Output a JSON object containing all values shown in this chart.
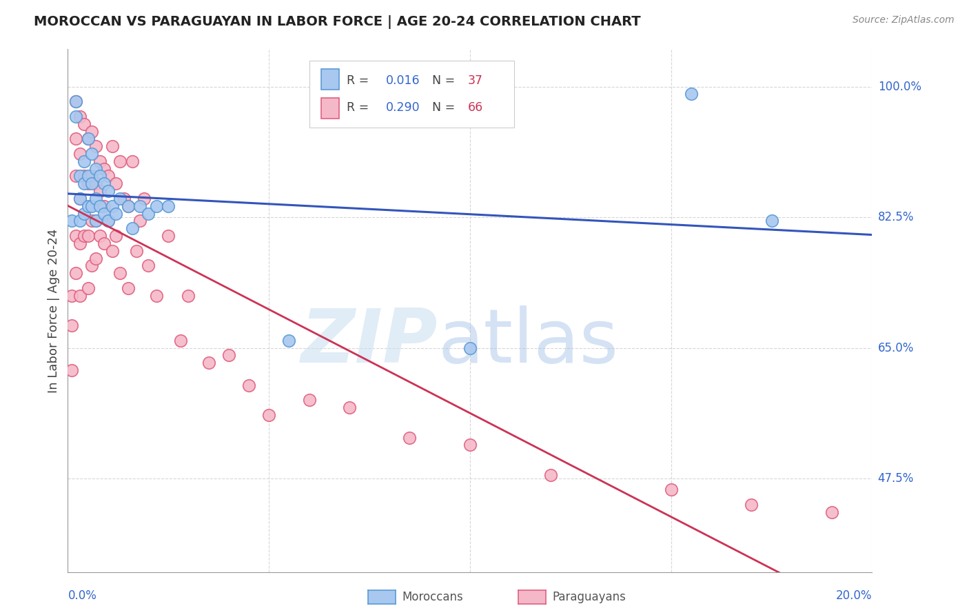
{
  "title": "MOROCCAN VS PARAGUAYAN IN LABOR FORCE | AGE 20-24 CORRELATION CHART",
  "source": "Source: ZipAtlas.com",
  "ylabel": "In Labor Force | Age 20-24",
  "ytick_labels": [
    "100.0%",
    "82.5%",
    "65.0%",
    "47.5%"
  ],
  "ytick_values": [
    1.0,
    0.825,
    0.65,
    0.475
  ],
  "xtick_labels": [
    "0.0%",
    "20.0%"
  ],
  "xlim": [
    0.0,
    0.2
  ],
  "ylim": [
    0.35,
    1.05
  ],
  "moroccan_color": "#a8c8f0",
  "paraguayan_color": "#f5b8c8",
  "moroccan_edge": "#5b9ad5",
  "paraguayan_edge": "#e06080",
  "trend_moroccan_color": "#3355bb",
  "trend_paraguayan_color": "#cc3355",
  "legend_r_moroccan": "0.016",
  "legend_n_moroccan": "37",
  "legend_r_paraguayan": "0.290",
  "legend_n_paraguayan": "66",
  "grid_color": "#cccccc",
  "background_color": "#ffffff",
  "title_color": "#222222",
  "axis_label_color": "#444444",
  "ytick_color": "#3366cc",
  "xtick_color": "#3366cc",
  "moroccan_x": [
    0.001,
    0.002,
    0.002,
    0.003,
    0.003,
    0.003,
    0.004,
    0.004,
    0.004,
    0.005,
    0.005,
    0.005,
    0.006,
    0.006,
    0.006,
    0.007,
    0.007,
    0.007,
    0.008,
    0.008,
    0.009,
    0.009,
    0.01,
    0.01,
    0.011,
    0.012,
    0.013,
    0.015,
    0.016,
    0.018,
    0.02,
    0.022,
    0.025,
    0.055,
    0.1,
    0.155,
    0.175
  ],
  "moroccan_y": [
    0.82,
    0.98,
    0.96,
    0.88,
    0.85,
    0.82,
    0.9,
    0.87,
    0.83,
    0.93,
    0.88,
    0.84,
    0.91,
    0.87,
    0.84,
    0.89,
    0.85,
    0.82,
    0.88,
    0.84,
    0.87,
    0.83,
    0.86,
    0.82,
    0.84,
    0.83,
    0.85,
    0.84,
    0.81,
    0.84,
    0.83,
    0.84,
    0.84,
    0.66,
    0.65,
    0.99,
    0.82
  ],
  "paraguayan_x": [
    0.001,
    0.001,
    0.001,
    0.002,
    0.002,
    0.002,
    0.002,
    0.002,
    0.003,
    0.003,
    0.003,
    0.003,
    0.003,
    0.004,
    0.004,
    0.004,
    0.005,
    0.005,
    0.005,
    0.005,
    0.006,
    0.006,
    0.006,
    0.006,
    0.007,
    0.007,
    0.007,
    0.007,
    0.008,
    0.008,
    0.008,
    0.009,
    0.009,
    0.009,
    0.01,
    0.01,
    0.011,
    0.011,
    0.012,
    0.012,
    0.013,
    0.013,
    0.014,
    0.015,
    0.015,
    0.016,
    0.017,
    0.018,
    0.019,
    0.02,
    0.022,
    0.025,
    0.028,
    0.03,
    0.035,
    0.04,
    0.045,
    0.05,
    0.06,
    0.07,
    0.085,
    0.1,
    0.12,
    0.15,
    0.17,
    0.19
  ],
  "paraguayan_y": [
    0.72,
    0.68,
    0.62,
    0.98,
    0.93,
    0.88,
    0.8,
    0.75,
    0.96,
    0.91,
    0.85,
    0.79,
    0.72,
    0.95,
    0.88,
    0.8,
    0.93,
    0.87,
    0.8,
    0.73,
    0.94,
    0.88,
    0.82,
    0.76,
    0.92,
    0.87,
    0.82,
    0.77,
    0.9,
    0.86,
    0.8,
    0.89,
    0.84,
    0.79,
    0.88,
    0.82,
    0.92,
    0.78,
    0.87,
    0.8,
    0.9,
    0.75,
    0.85,
    0.84,
    0.73,
    0.9,
    0.78,
    0.82,
    0.85,
    0.76,
    0.72,
    0.8,
    0.66,
    0.72,
    0.63,
    0.64,
    0.6,
    0.56,
    0.58,
    0.57,
    0.53,
    0.52,
    0.48,
    0.46,
    0.44,
    0.43
  ]
}
